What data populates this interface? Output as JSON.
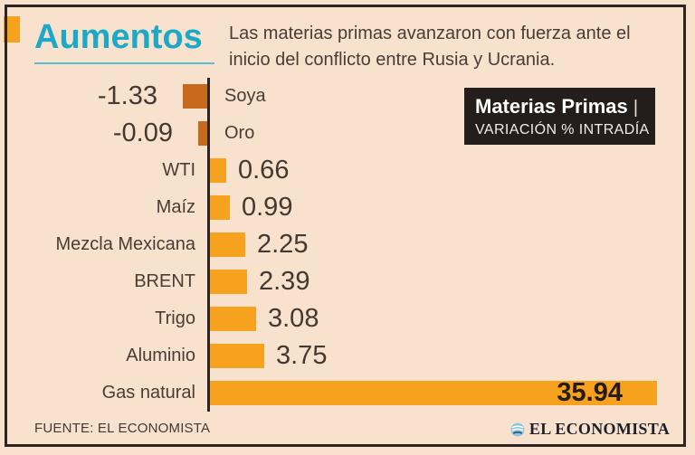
{
  "header": {
    "title": "Aumentos",
    "subtitle": "Las materias primas avanzaron con fuerza ante el inicio del conflicto entre Rusia y Ucrania.",
    "title_color": "#1CA9C8",
    "accent_color": "#F6A21F"
  },
  "info_box": {
    "title": "Materias Primas",
    "separator": "|",
    "subtitle": "VARIACIÓN % INTRADÍA",
    "bg_color": "#231E1B",
    "text_color": "#FFFFFF"
  },
  "chart_data": {
    "type": "bar",
    "orientation": "horizontal",
    "title": "Materias Primas — Variación % intradía",
    "categories": [
      "Soya",
      "Oro",
      "WTI",
      "Maíz",
      "Mezcla Mexicana",
      "BRENT",
      "Trigo",
      "Aluminio",
      "Gas natural"
    ],
    "values": [
      -1.33,
      -0.09,
      0.66,
      0.99,
      2.25,
      2.39,
      3.08,
      3.75,
      35.94
    ],
    "value_labels": [
      "-1.33",
      "-0.09",
      "0.66",
      "0.99",
      "2.25",
      "2.39",
      "3.08",
      "3.75",
      "35.94"
    ],
    "positive_color": "#F6A21F",
    "negative_color": "#C76A1E",
    "axis_color": "#2E2522",
    "grid": false,
    "legend": false
  },
  "footer": {
    "source": "FUENTE: EL ECONOMISTA",
    "brand": "EL ECONOMISTA"
  },
  "canvas": {
    "background": "#F8E2CE",
    "border_color": "#2E2522"
  }
}
